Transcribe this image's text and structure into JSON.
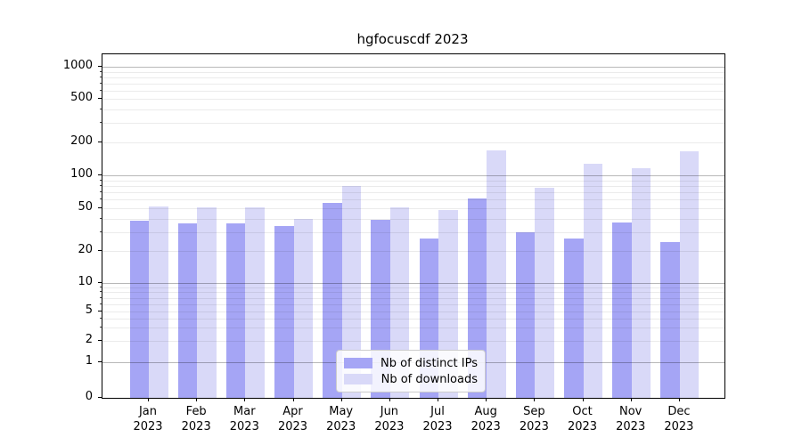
{
  "title": "hgfocuscdf 2023",
  "chart_data": {
    "type": "bar",
    "title": "hgfocuscdf 2023",
    "categories": [
      "Jan",
      "Feb",
      "Mar",
      "Apr",
      "May",
      "Jun",
      "Jul",
      "Aug",
      "Sep",
      "Oct",
      "Nov",
      "Dec"
    ],
    "x_year_label": "2023",
    "series": [
      {
        "name": "Nb of distinct IPs",
        "color": "#a5a5f5",
        "values": [
          38,
          36,
          36,
          34,
          56,
          39,
          26,
          62,
          30,
          26,
          37,
          24
        ]
      },
      {
        "name": "Nb of downloads",
        "color": "#d9d9f8",
        "values": [
          52,
          51,
          51,
          40,
          80,
          51,
          48,
          168,
          77,
          128,
          117,
          166
        ]
      }
    ],
    "y_axis": {
      "scale": "symlog",
      "tick_values": [
        0,
        1,
        2,
        5,
        10,
        20,
        50,
        100,
        200,
        500,
        1000
      ],
      "tick_labels": [
        "0",
        "1",
        "2",
        "5",
        "10",
        "20",
        "50",
        "100",
        "200",
        "500",
        "1000"
      ],
      "ylim": [
        0,
        1200
      ]
    },
    "grid": true,
    "legend": {
      "position": "lower center",
      "entries": [
        "Nb of distinct IPs",
        "Nb of downloads"
      ]
    }
  }
}
